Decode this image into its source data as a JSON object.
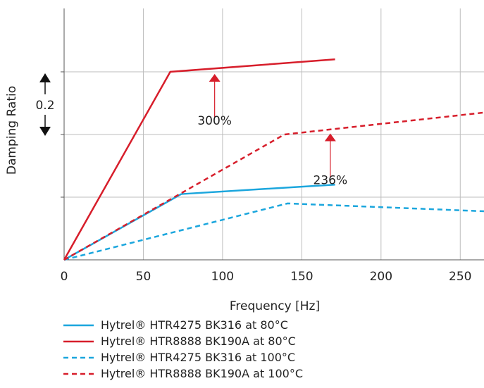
{
  "chart_data": {
    "type": "line",
    "title": "",
    "xlabel": "Frequency [Hz]",
    "ylabel": "Damping Ratio",
    "xlim": [
      0,
      265
    ],
    "ylim": [
      0,
      0.6
    ],
    "x_ticks": [
      0,
      50,
      100,
      150,
      200,
      250
    ],
    "x_tick_labels": [
      "0",
      "50",
      "100",
      "150",
      "200",
      "250"
    ],
    "y_gridlines": [
      0.2,
      0.4,
      0.6
    ],
    "grid": true,
    "legend_position": "bottom",
    "scale_indicator": {
      "label": "0.2"
    },
    "colors": {
      "blue": "#1BA6DD",
      "red": "#D71E2B"
    },
    "series": [
      {
        "name": "Hytrel® HTR4275 BK316 at 80°C",
        "color": "#1BA6DD",
        "dash": false,
        "x": [
          0,
          74,
          171
        ],
        "y": [
          0.0,
          0.21,
          0.24
        ]
      },
      {
        "name": "Hytrel® HTR8888 BK190A at 80°C",
        "color": "#D71E2B",
        "dash": false,
        "x": [
          0,
          67,
          171
        ],
        "y": [
          0.0,
          0.6,
          0.64
        ]
      },
      {
        "name": "Hytrel® HTR4275 BK316 at 100°C",
        "color": "#1BA6DD",
        "dash": true,
        "x": [
          0,
          141,
          265
        ],
        "y": [
          0.0,
          0.18,
          0.155
        ]
      },
      {
        "name": "Hytrel® HTR8888 BK190A at 100°C",
        "color": "#D71E2B",
        "dash": true,
        "x": [
          0,
          139,
          265
        ],
        "y": [
          0.0,
          0.4,
          0.47
        ]
      }
    ],
    "annotations": [
      {
        "text": "300%",
        "x": 95,
        "y": 0.6
      },
      {
        "text": "236%",
        "x": 168,
        "y": 0.41
      }
    ]
  }
}
